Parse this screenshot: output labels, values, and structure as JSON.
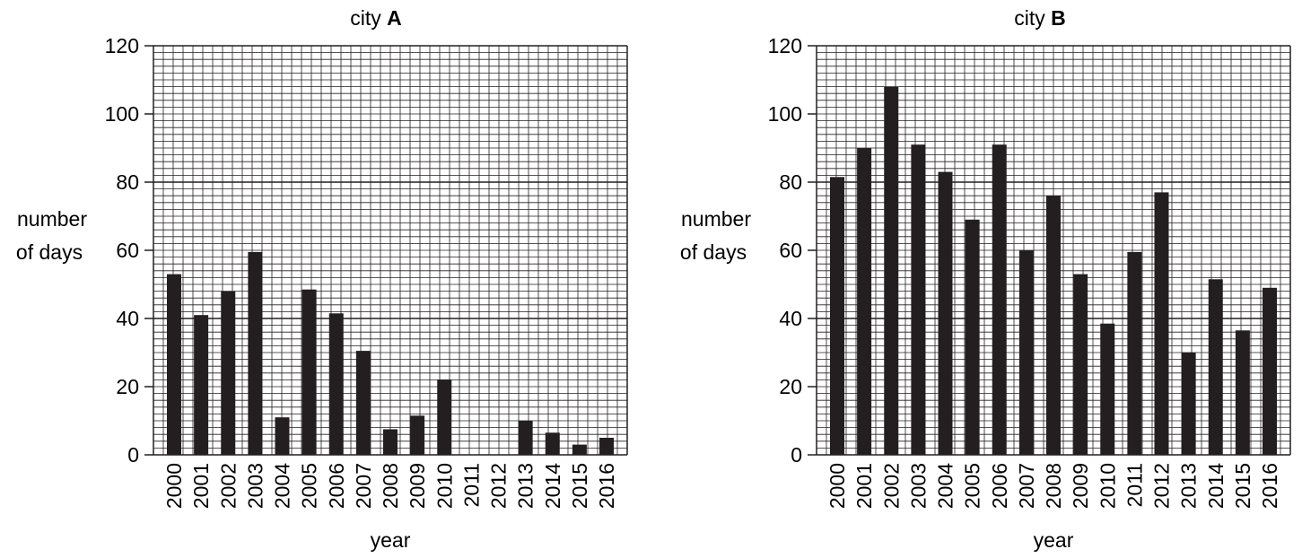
{
  "chart_data": [
    {
      "type": "bar",
      "title": "city ",
      "title_emphasis": "A",
      "xlabel": "year",
      "ylabel_line1": "number",
      "ylabel_line2": "of days",
      "ylim": [
        0,
        120
      ],
      "yticks": [
        "0",
        "20",
        "40",
        "60",
        "80",
        "100",
        "120"
      ],
      "grid": true,
      "categories": [
        "2000",
        "2001",
        "2002",
        "2003",
        "2004",
        "2005",
        "2006",
        "2007",
        "2008",
        "2009",
        "2010",
        "2011",
        "2012",
        "2013",
        "2014",
        "2015",
        "2016"
      ],
      "values": [
        53,
        41,
        48,
        59.5,
        11,
        48.5,
        41.5,
        30.5,
        7.5,
        11.5,
        22,
        0,
        0,
        10,
        6.5,
        3,
        5
      ],
      "bar_color": "#231f20"
    },
    {
      "type": "bar",
      "title": "city ",
      "title_emphasis": "B",
      "xlabel": "year",
      "ylabel_line1": "number",
      "ylabel_line2": "of days",
      "ylim": [
        0,
        120
      ],
      "yticks": [
        "0",
        "20",
        "40",
        "60",
        "80",
        "100",
        "120"
      ],
      "grid": true,
      "categories": [
        "2000",
        "2001",
        "2002",
        "2003",
        "2004",
        "2005",
        "2006",
        "2007",
        "2008",
        "2009",
        "2010",
        "2011",
        "2012",
        "2013",
        "2014",
        "2015",
        "2016"
      ],
      "values": [
        81.5,
        90,
        108,
        91,
        83,
        69,
        91,
        60,
        76,
        53,
        38.5,
        59.5,
        77,
        30,
        51.5,
        36.5,
        49
      ],
      "bar_color": "#231f20"
    }
  ]
}
